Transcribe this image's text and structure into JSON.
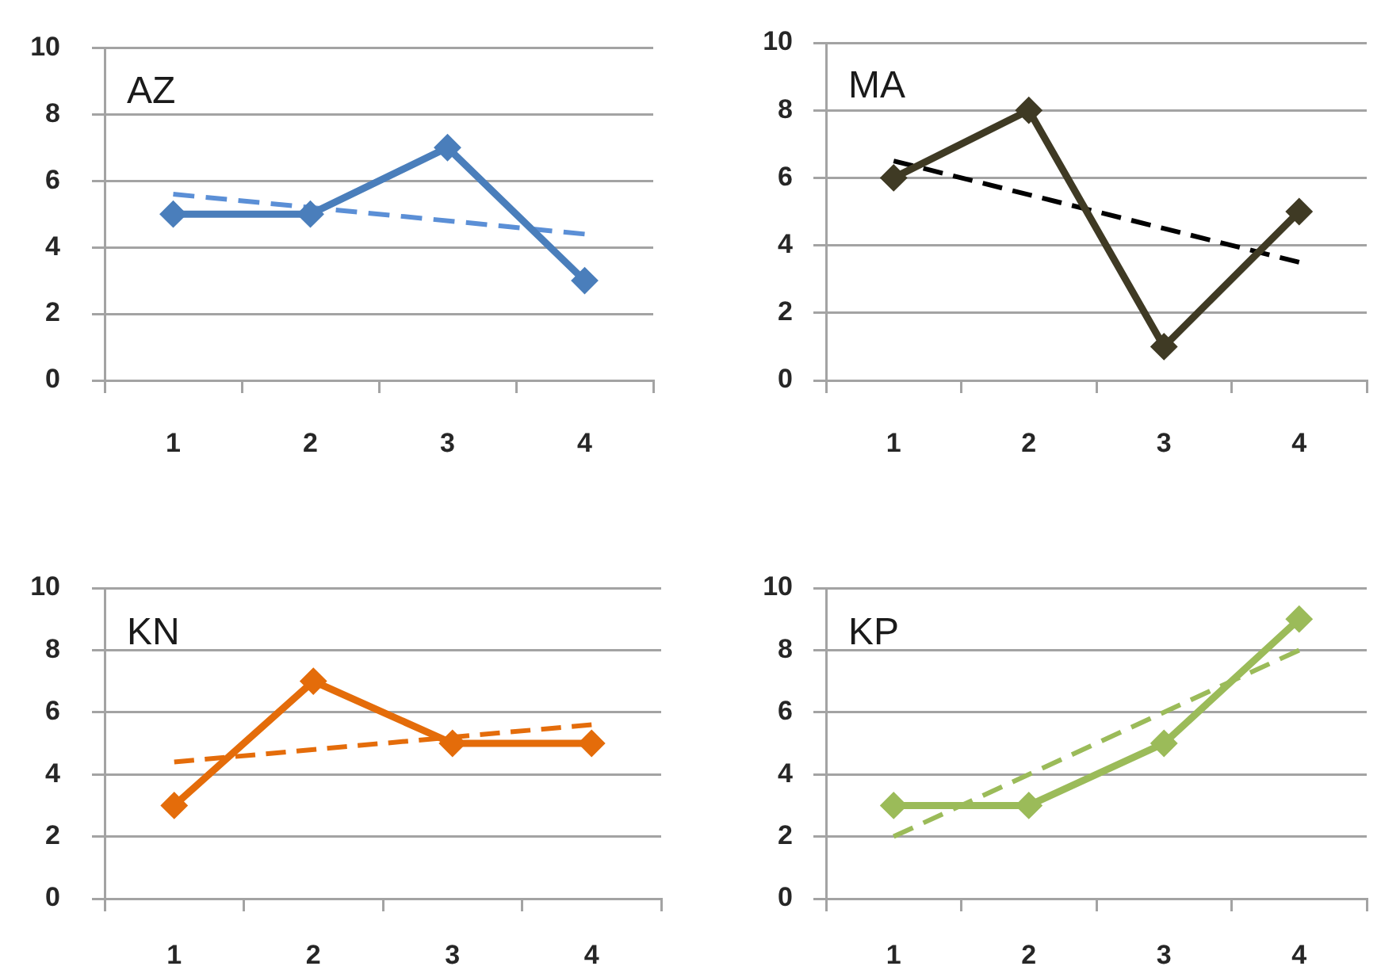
{
  "chart_data": [
    {
      "type": "line",
      "title": "AZ",
      "categories": [
        "1",
        "2",
        "3",
        "4"
      ],
      "ylim": [
        0,
        10
      ],
      "yticks": [
        0,
        2,
        4,
        6,
        8,
        10
      ],
      "grid": "y",
      "marker": "diamond",
      "line_style": "solid",
      "series": [
        {
          "color": "#4a7ebb",
          "values": [
            5,
            5,
            7,
            3
          ]
        },
        {
          "color": "#5b8fd6",
          "x": [
            "1",
            "4"
          ],
          "values": [
            5.6,
            4.4
          ],
          "line_style": "dashed",
          "marker": "none"
        }
      ]
    },
    {
      "type": "line",
      "title": "MA",
      "categories": [
        "1",
        "2",
        "3",
        "4"
      ],
      "ylim": [
        0,
        10
      ],
      "yticks": [
        0,
        2,
        4,
        6,
        8,
        10
      ],
      "grid": "y",
      "marker": "diamond",
      "line_style": "solid",
      "series": [
        {
          "color": "#3f3a24",
          "values": [
            6,
            8,
            1,
            5
          ]
        },
        {
          "color": "#000000",
          "x": [
            "1",
            "4"
          ],
          "values": [
            6.5,
            3.5
          ],
          "line_style": "dashed",
          "marker": "none"
        }
      ]
    },
    {
      "type": "line",
      "title": "KN",
      "categories": [
        "1",
        "2",
        "3",
        "4"
      ],
      "ylim": [
        0,
        10
      ],
      "yticks": [
        0,
        2,
        4,
        6,
        8,
        10
      ],
      "grid": "y",
      "marker": "diamond",
      "line_style": "solid",
      "series": [
        {
          "color": "#e46c0a",
          "values": [
            3,
            7,
            5,
            5
          ]
        },
        {
          "color": "#e46c0a",
          "x": [
            "1",
            "4"
          ],
          "values": [
            4.4,
            5.6
          ],
          "line_style": "dashed",
          "marker": "none"
        }
      ]
    },
    {
      "type": "line",
      "title": "KP",
      "categories": [
        "1",
        "2",
        "3",
        "4"
      ],
      "ylim": [
        0,
        10
      ],
      "yticks": [
        0,
        2,
        4,
        6,
        8,
        10
      ],
      "grid": "y",
      "marker": "diamond",
      "line_style": "solid",
      "series": [
        {
          "color": "#9bbb59",
          "values": [
            3,
            3,
            5,
            9
          ]
        },
        {
          "color": "#9bbb59",
          "x": [
            "1",
            "4"
          ],
          "values": [
            2,
            8
          ],
          "line_style": "dashed",
          "marker": "none"
        }
      ]
    }
  ]
}
